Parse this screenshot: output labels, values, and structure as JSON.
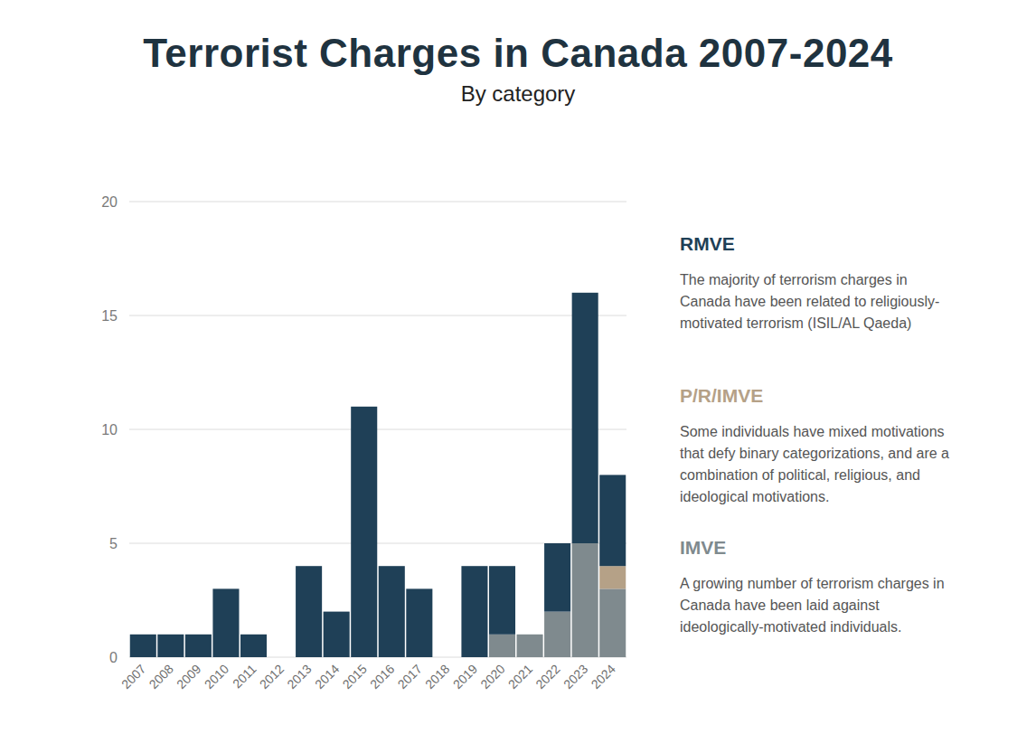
{
  "chart_data": {
    "type": "bar",
    "title": "Terrorist Charges in Canada 2007-2024",
    "subtitle": "By category",
    "categories": [
      "2007",
      "2008",
      "2009",
      "2010",
      "2011",
      "2012",
      "2013",
      "2014",
      "2015",
      "2016",
      "2017",
      "2018",
      "2019",
      "2020",
      "2021",
      "2022",
      "2023",
      "2024"
    ],
    "series": [
      {
        "name": "IMVE",
        "color": "#7f8a8e",
        "description": "A growing number of terrorism charges in Canada have been laid against ideologically-motivated individuals.",
        "values": [
          0,
          0,
          0,
          0,
          0,
          0,
          0,
          0,
          0,
          0,
          0,
          0,
          0,
          1,
          1,
          2,
          5,
          3
        ]
      },
      {
        "name": "P/R/IMVE",
        "color": "#b5a187",
        "description": "Some individuals have mixed motivations that defy binary categorizations, and are a combination of political, religious, and ideological motivations.",
        "values": [
          0,
          0,
          0,
          0,
          0,
          0,
          0,
          0,
          0,
          0,
          0,
          0,
          0,
          0,
          0,
          0,
          0,
          1
        ]
      },
      {
        "name": "RMVE",
        "color": "#1f4057",
        "description": "The majority of terrorism charges in Canada have been related to religiously-motivated terrorism (ISIL/AL Qaeda)",
        "values": [
          1,
          1,
          1,
          3,
          1,
          0,
          4,
          2,
          11,
          4,
          3,
          0,
          4,
          3,
          0,
          3,
          11,
          4
        ]
      }
    ],
    "stacked": true,
    "ylim": [
      0,
      20
    ],
    "yticks": [
      0,
      5,
      10,
      15,
      20
    ],
    "grid": true
  }
}
